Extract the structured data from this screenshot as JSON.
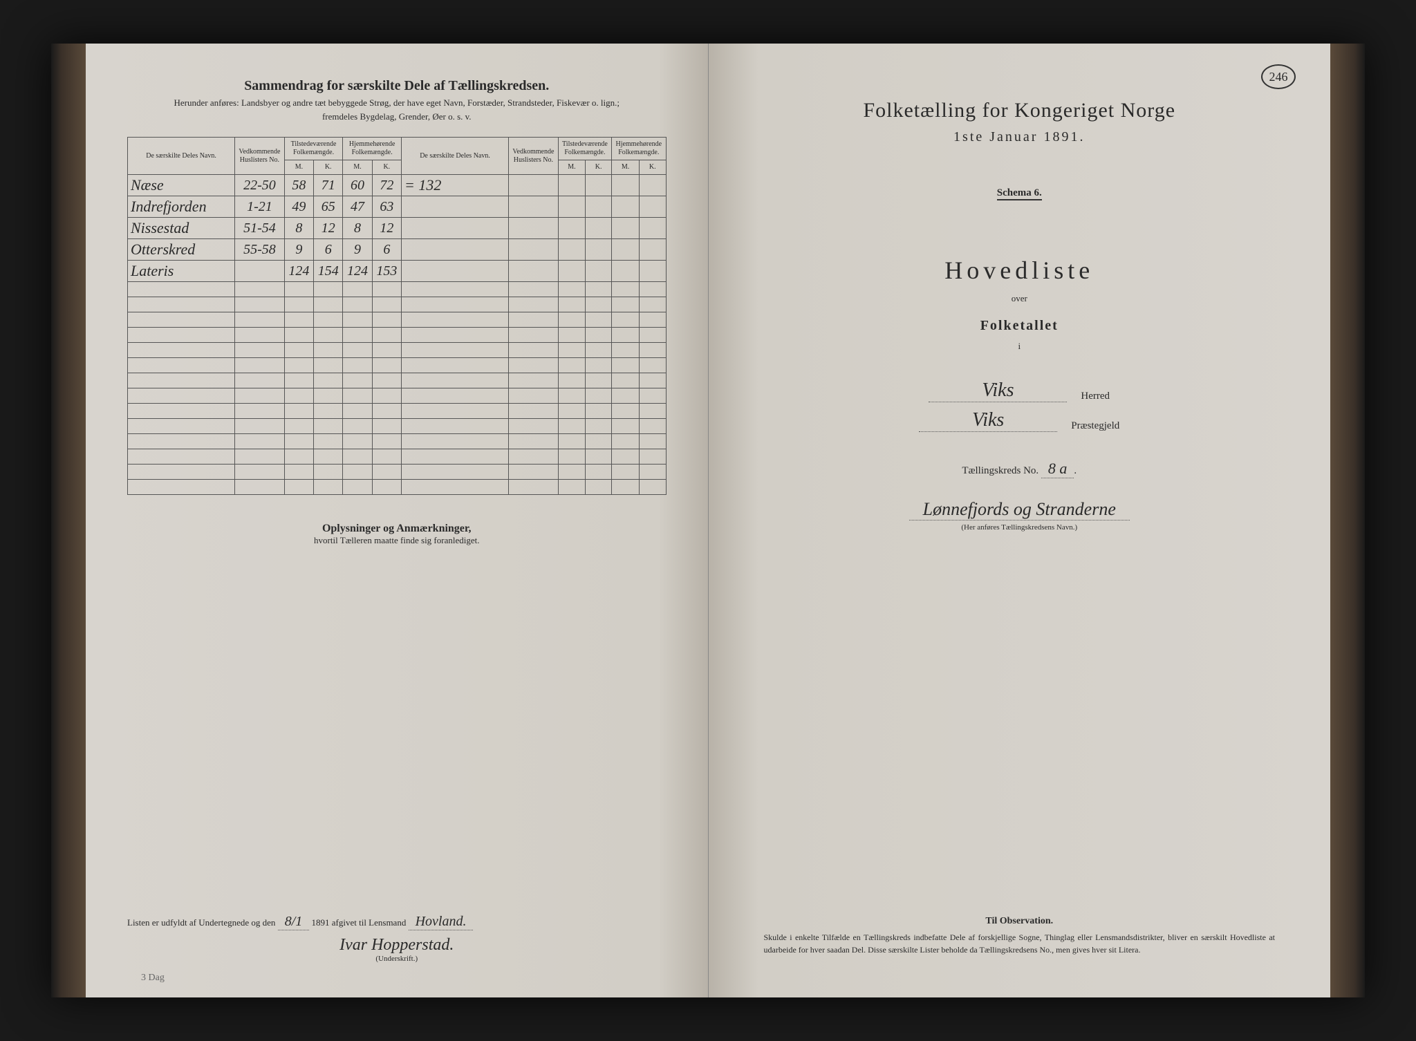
{
  "page_number": "246",
  "left": {
    "title": "Sammendrag for særskilte Dele af Tællingskredsen.",
    "subtitle1": "Herunder anføres: Landsbyer og andre tæt bebyggede Strøg, der have eget Navn, Forstæder, Strandsteder, Fiskevær o. lign.;",
    "subtitle2": "fremdeles Bygdelag, Grender, Øer o. s. v.",
    "headers": {
      "name1": "De særskilte Deles Navn.",
      "hus": "Vedkommende Huslisters No.",
      "tilstede": "Tilstedeværende Folkemængde.",
      "hjemme": "Hjemmehørende Folkemængde.",
      "name2": "De særskilte Deles Navn.",
      "M": "M.",
      "K": "K."
    },
    "rows": [
      {
        "name": "Næse",
        "hus": "22-50",
        "tm": "58",
        "tk": "71",
        "hm": "60",
        "hk": "72",
        "extra": "= 132"
      },
      {
        "name": "Indrefjorden",
        "hus": "1-21",
        "tm": "49",
        "tk": "65",
        "hm": "47",
        "hk": "63",
        "extra": ""
      },
      {
        "name": "Nissestad",
        "hus": "51-54",
        "tm": "8",
        "tk": "12",
        "hm": "8",
        "hk": "12",
        "extra": ""
      },
      {
        "name": "Otterskred",
        "hus": "55-58",
        "tm": "9",
        "tk": "6",
        "hm": "9",
        "hk": "6",
        "extra": ""
      },
      {
        "name": "Lateris",
        "hus": "",
        "tm": "124",
        "tk": "154",
        "hm": "124",
        "hk": "153",
        "extra": ""
      }
    ],
    "oplys_title": "Oplysninger og Anmærkninger,",
    "oplys_sub": "hvortil Tælleren maatte finde sig foranlediget.",
    "sig_prefix": "Listen er udfyldt af Undertegnede og den",
    "sig_date": "8/1",
    "sig_mid": "1891 afgivet til Lensmand",
    "sig_lensmand": "Hovland.",
    "sig_name": "Ivar Hopperstad.",
    "sig_under": "(Underskrift.)",
    "bottom_note": "3   Dag"
  },
  "right": {
    "title": "Folketælling for Kongeriget Norge",
    "date": "1ste Januar 1891.",
    "schema": "Schema 6.",
    "hovedliste": "Hovedliste",
    "over": "over",
    "folketallet": "Folketallet",
    "i": "i",
    "herred_val": "Viks",
    "herred_lbl": "Herred",
    "praeste_val": "Viks",
    "praeste_lbl": "Præstegjeld",
    "kreds_prefix": "Tællingskreds No.",
    "kreds_no": "8 a",
    "kreds_name": "Lønnefjords og Stranderne",
    "kreds_sub": "(Her anføres Tællingskredsens Navn.)",
    "obs_title": "Til Observation.",
    "obs_text": "Skulde i enkelte Tilfælde en Tællingskreds indbefatte Dele af forskjellige Sogne, Thinglag eller Lensmandsdistrikter, bliver en særskilt Hovedliste at udarbeide for hver saadan Del. Disse særskilte Lister beholde da Tællingskredsens No., men gives hver sit Litera."
  },
  "colors": {
    "paper": "#d8d4ce",
    "ink": "#2a2a2a",
    "border": "#555555",
    "background": "#1a1a1a"
  }
}
